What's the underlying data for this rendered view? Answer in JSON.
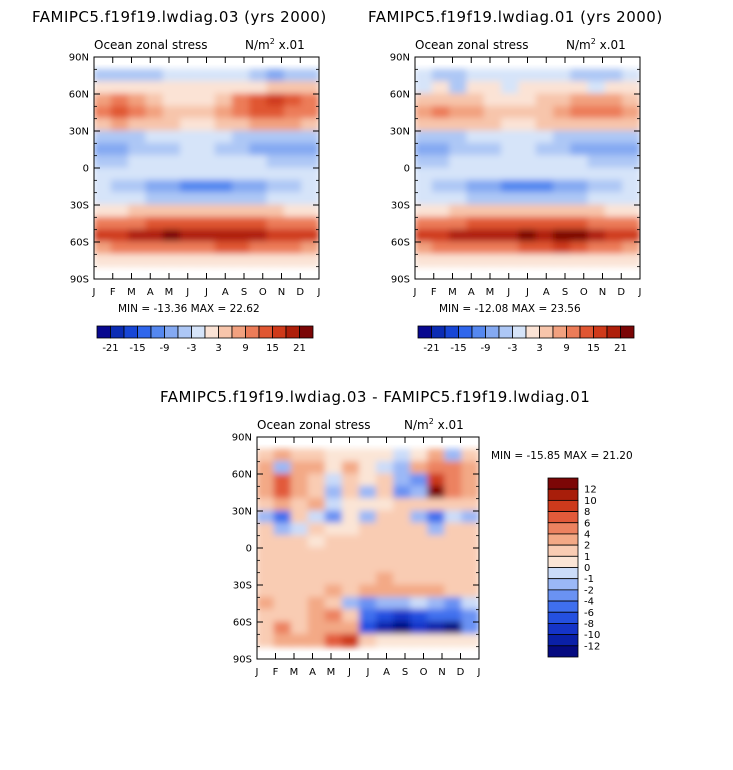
{
  "panels": [
    {
      "title": "FAMIPC5.f19f19.lwdiag.03 (yrs 2000)",
      "left_label": "Ocean zonal stress",
      "right_label": "N/m",
      "right_sup": "2",
      "right_tail": " x.01",
      "stats": "MIN = -13.36  MAX =  22.62",
      "chart_data": {
        "type": "heatmap",
        "variable": "Ocean zonal stress",
        "units": "N/m2 x.01",
        "x": [
          "Jan",
          "Feb",
          "Mar",
          "Apr",
          "May",
          "Jun",
          "Jul",
          "Aug",
          "Sep",
          "Oct",
          "Nov",
          "Dec",
          "Jan"
        ],
        "y": [
          "80N",
          "70N",
          "60N",
          "50N",
          "40N",
          "30N",
          "20N",
          "10N",
          "0",
          "10S",
          "20S",
          "30S",
          "40S",
          "50S",
          "60S",
          "70S"
        ],
        "values": [
          [
            -4,
            -4,
            -4,
            -4,
            -3,
            -3,
            -3,
            -3,
            -3,
            -4,
            -9,
            -6,
            -4
          ],
          [
            2,
            1,
            1,
            1,
            0,
            0,
            0,
            1,
            1,
            2,
            4,
            4,
            3
          ],
          [
            8,
            9,
            7,
            4,
            2,
            1,
            1,
            4,
            9,
            13,
            15,
            12,
            9
          ],
          [
            10,
            12,
            10,
            7,
            5,
            3,
            3,
            6,
            10,
            12,
            12,
            11,
            10
          ],
          [
            5,
            6,
            5,
            4,
            3,
            2,
            2,
            3,
            5,
            6,
            6,
            6,
            5
          ],
          [
            -4,
            -5,
            -4,
            -3,
            -2,
            -2,
            -2,
            -3,
            -4,
            -5,
            -6,
            -5,
            -4
          ],
          [
            -9,
            -8,
            -6,
            -5,
            -4,
            -3,
            -3,
            -4,
            -6,
            -8,
            -9,
            -9,
            -9
          ],
          [
            -4,
            -4,
            -3,
            -3,
            -3,
            -3,
            -3,
            -3,
            -3,
            -3,
            -4,
            -4,
            -4
          ],
          [
            -2,
            -2,
            -2,
            -2,
            -3,
            -3,
            -3,
            -3,
            -3,
            -3,
            -2,
            -2,
            -2
          ],
          [
            -3,
            -4,
            -5,
            -7,
            -9,
            -10,
            -10,
            -10,
            -9,
            -7,
            -5,
            -4,
            -3
          ],
          [
            -2,
            -2,
            -3,
            -4,
            -5,
            -6,
            -6,
            -6,
            -5,
            -4,
            -3,
            -2,
            -2
          ],
          [
            2,
            2,
            3,
            3,
            4,
            4,
            4,
            4,
            4,
            3,
            3,
            2,
            2
          ],
          [
            9,
            10,
            11,
            12,
            13,
            13,
            13,
            13,
            13,
            12,
            11,
            10,
            9
          ],
          [
            15,
            17,
            18,
            19,
            21,
            18,
            19,
            20,
            19,
            18,
            17,
            16,
            15
          ],
          [
            8,
            9,
            10,
            11,
            10,
            10,
            11,
            12,
            12,
            11,
            10,
            9,
            8
          ],
          [
            1,
            1,
            2,
            2,
            2,
            2,
            2,
            2,
            2,
            2,
            1,
            1,
            1
          ]
        ],
        "min": -13.36,
        "max": 22.62,
        "xlabels": [
          "J",
          "F",
          "M",
          "A",
          "M",
          "J",
          "J",
          "A",
          "S",
          "O",
          "N",
          "D",
          "J"
        ],
        "ylabels": [
          "90N",
          "60N",
          "30N",
          "0",
          "30S",
          "60S",
          "90S"
        ],
        "colorbar": {
          "levels": [
            -24,
            -21,
            -18,
            -15,
            -12,
            -9,
            -6,
            -3,
            0,
            3,
            6,
            9,
            12,
            15,
            18,
            21,
            24
          ],
          "labels": [
            "-21",
            "-15",
            "-9",
            "-3",
            "3",
            "9",
            "15",
            "21"
          ],
          "colors": [
            "#08088f",
            "#0b2cb4",
            "#1746d6",
            "#2f66ec",
            "#5588f0",
            "#84a9f2",
            "#adc7f5",
            "#d6e4f9",
            "#fbe3d5",
            "#f7c5ab",
            "#f2a17f",
            "#ec7c58",
            "#e05632",
            "#cf3a1a",
            "#ae1f0a",
            "#7b0606"
          ]
        }
      }
    },
    {
      "title": "FAMIPC5.f19f19.lwdiag.01 (yrs 2000)",
      "left_label": "Ocean zonal stress",
      "right_label": "N/m",
      "right_sup": "2",
      "right_tail": " x.01",
      "stats": "MIN = -12.08  MAX =  23.56",
      "chart_data": {
        "type": "heatmap",
        "variable": "Ocean zonal stress",
        "units": "N/m2 x.01",
        "x": [
          "Jan",
          "Feb",
          "Mar",
          "Apr",
          "May",
          "Jun",
          "Jul",
          "Aug",
          "Sep",
          "Oct",
          "Nov",
          "Dec",
          "Jan"
        ],
        "y": [
          "80N",
          "70N",
          "60N",
          "50N",
          "40N",
          "30N",
          "20N",
          "10N",
          "0",
          "10S",
          "20S",
          "30S",
          "40S",
          "50S",
          "60S",
          "70S"
        ],
        "values": [
          [
            -3,
            -4,
            -4,
            -3,
            -3,
            -3,
            -3,
            -3,
            -3,
            -4,
            -6,
            -5,
            -3
          ],
          [
            -3,
            1,
            -4,
            1,
            0,
            -2,
            0,
            1,
            1,
            1,
            -3,
            1,
            1
          ],
          [
            5,
            4,
            5,
            3,
            2,
            1,
            1,
            3,
            4,
            6,
            8,
            6,
            5
          ],
          [
            8,
            9,
            8,
            6,
            4,
            3,
            3,
            5,
            7,
            9,
            10,
            9,
            8
          ],
          [
            4,
            5,
            5,
            4,
            3,
            2,
            2,
            3,
            4,
            5,
            5,
            5,
            4
          ],
          [
            -4,
            -5,
            -4,
            -3,
            -2,
            -2,
            -2,
            -3,
            -4,
            -5,
            -6,
            -5,
            -4
          ],
          [
            -9,
            -8,
            -6,
            -5,
            -4,
            -3,
            -3,
            -4,
            -6,
            -8,
            -9,
            -9,
            -9
          ],
          [
            -4,
            -4,
            -3,
            -3,
            -3,
            -3,
            -3,
            -3,
            -3,
            -3,
            -4,
            -4,
            -4
          ],
          [
            -2,
            -2,
            -2,
            -2,
            -3,
            -3,
            -3,
            -3,
            -3,
            -3,
            -2,
            -2,
            -2
          ],
          [
            -3,
            -4,
            -5,
            -7,
            -9,
            -10,
            -10,
            -10,
            -9,
            -7,
            -5,
            -4,
            -3
          ],
          [
            -2,
            -2,
            -3,
            -4,
            -5,
            -6,
            -6,
            -6,
            -5,
            -4,
            -3,
            -2,
            -2
          ],
          [
            2,
            2,
            3,
            3,
            4,
            4,
            4,
            4,
            4,
            3,
            3,
            2,
            2
          ],
          [
            9,
            10,
            11,
            12,
            13,
            13,
            13,
            13,
            13,
            12,
            11,
            10,
            9
          ],
          [
            15,
            17,
            18,
            18,
            18,
            19,
            21,
            19,
            22,
            21,
            19,
            17,
            15
          ],
          [
            8,
            9,
            10,
            11,
            11,
            11,
            12,
            14,
            16,
            14,
            11,
            9,
            8
          ],
          [
            1,
            1,
            2,
            2,
            2,
            2,
            2,
            2,
            2,
            2,
            1,
            1,
            1
          ]
        ],
        "min": -12.08,
        "max": 23.56,
        "xlabels": [
          "J",
          "F",
          "M",
          "A",
          "M",
          "J",
          "J",
          "A",
          "S",
          "O",
          "N",
          "D",
          "J"
        ],
        "ylabels": [
          "90N",
          "60N",
          "30N",
          "0",
          "30S",
          "60S",
          "90S"
        ],
        "colorbar": {
          "levels": [
            -24,
            -21,
            -18,
            -15,
            -12,
            -9,
            -6,
            -3,
            0,
            3,
            6,
            9,
            12,
            15,
            18,
            21,
            24
          ],
          "labels": [
            "-21",
            "-15",
            "-9",
            "-3",
            "3",
            "9",
            "15",
            "21"
          ],
          "colors": [
            "#08088f",
            "#0b2cb4",
            "#1746d6",
            "#2f66ec",
            "#5588f0",
            "#84a9f2",
            "#adc7f5",
            "#d6e4f9",
            "#fbe3d5",
            "#f7c5ab",
            "#f2a17f",
            "#ec7c58",
            "#e05632",
            "#cf3a1a",
            "#ae1f0a",
            "#7b0606"
          ]
        }
      }
    },
    {
      "title": "FAMIPC5.f19f19.lwdiag.03 - FAMIPC5.f19f19.lwdiag.01",
      "left_label": "Ocean zonal stress",
      "right_label": "N/m",
      "right_sup": "2",
      "right_tail": " x.01",
      "stats": "MIN = -15.85  MAX =  21.20",
      "chart_data": {
        "type": "heatmap",
        "variable": "Ocean zonal stress difference",
        "units": "N/m2 x.01",
        "x": [
          "Jan",
          "Feb",
          "Mar",
          "Apr",
          "May",
          "Jun",
          "Jul",
          "Aug",
          "Sep",
          "Oct",
          "Nov",
          "Dec",
          "Jan"
        ],
        "y": [
          "80N",
          "70N",
          "60N",
          "50N",
          "40N",
          "30N",
          "20N",
          "10N",
          "0",
          "10S",
          "20S",
          "30S",
          "40S",
          "50S",
          "60S",
          "70S"
        ],
        "values": [
          [
            1,
            2,
            1,
            1,
            0,
            0,
            0,
            0,
            -1,
            0,
            2,
            -2,
            1
          ],
          [
            3,
            -2,
            3,
            2,
            0,
            2,
            0,
            -1,
            -2,
            3,
            4,
            4,
            2
          ],
          [
            3,
            6,
            2,
            1,
            -1,
            1,
            0,
            1,
            -2,
            -3,
            9,
            5,
            3
          ],
          [
            2,
            7,
            2,
            1,
            -2,
            1,
            -2,
            1,
            -3,
            -2,
            12,
            4,
            2
          ],
          [
            1,
            2,
            1,
            3,
            -1,
            0,
            0,
            0,
            1,
            1,
            1,
            1,
            1
          ],
          [
            -2,
            -5,
            1,
            -1,
            -3,
            0,
            -2,
            1,
            1,
            -2,
            -6,
            -1,
            -2
          ],
          [
            1,
            -2,
            -1,
            1,
            0,
            0,
            1,
            1,
            1,
            1,
            -2,
            1,
            1
          ],
          [
            1,
            1,
            1,
            0,
            1,
            1,
            1,
            1,
            1,
            1,
            1,
            1,
            1
          ],
          [
            1,
            1,
            1,
            1,
            1,
            1,
            1,
            1,
            1,
            1,
            1,
            1,
            1
          ],
          [
            1,
            1,
            1,
            1,
            1,
            1,
            1,
            1,
            1,
            1,
            1,
            1,
            1
          ],
          [
            1,
            1,
            1,
            1,
            1,
            1,
            1,
            2,
            1,
            1,
            1,
            1,
            1
          ],
          [
            1,
            1,
            1,
            1,
            2,
            1,
            2,
            3,
            2,
            2,
            3,
            1,
            1
          ],
          [
            2,
            1,
            1,
            2,
            1,
            -2,
            -3,
            -2,
            -2,
            -1,
            -2,
            -3,
            -1
          ],
          [
            1,
            1,
            1,
            2,
            5,
            1,
            -6,
            -8,
            -9,
            -7,
            -5,
            -6,
            -3
          ],
          [
            1,
            5,
            1,
            2,
            3,
            3,
            -7,
            -12,
            -15,
            -10,
            -11,
            -14,
            -4
          ],
          [
            1,
            3,
            2,
            2,
            7,
            9,
            1,
            0,
            0,
            0,
            0,
            0,
            0
          ]
        ],
        "min": -15.85,
        "max": 21.2,
        "xlabels": [
          "J",
          "F",
          "M",
          "A",
          "M",
          "J",
          "J",
          "A",
          "S",
          "O",
          "N",
          "D",
          "J"
        ],
        "ylabels": [
          "90N",
          "60N",
          "30N",
          "0",
          "30S",
          "60S",
          "90S"
        ],
        "colorbar": {
          "levels": [
            -14,
            -12,
            -10,
            -8,
            -6,
            -4,
            -2,
            -1,
            0,
            1,
            2,
            4,
            6,
            8,
            10,
            12,
            14
          ],
          "labels": [
            "12",
            "10",
            "8",
            "6",
            "4",
            "2",
            "1",
            "0",
            "-1",
            "-2",
            "-4",
            "-6",
            "-8",
            "-10",
            "-12"
          ],
          "colors": [
            "#050a80",
            "#0a20a8",
            "#1534c8",
            "#2450e0",
            "#3f6fee",
            "#6a92f3",
            "#9bb8f6",
            "#cbdcf9",
            "#fbe5d6",
            "#f9ccb3",
            "#f3a986",
            "#ec8260",
            "#e25a3a",
            "#cd3a1c",
            "#a81e0a",
            "#7c0606"
          ]
        }
      }
    }
  ]
}
